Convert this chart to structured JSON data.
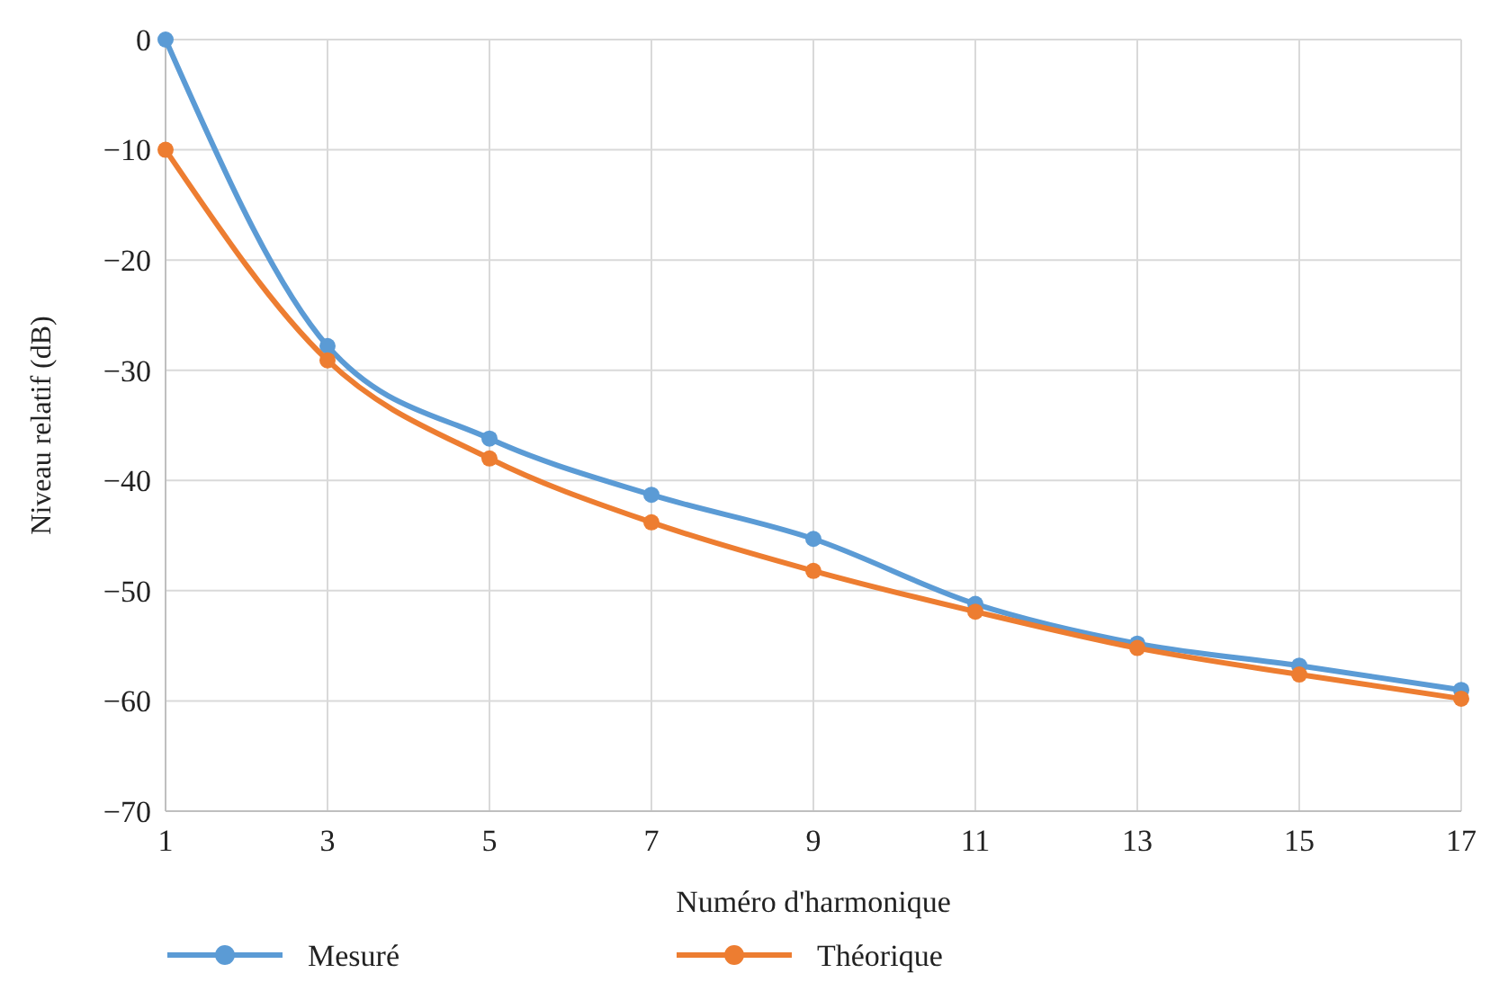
{
  "chart_data": {
    "type": "line",
    "xlabel": "Numéro d'harmonique",
    "ylabel": "Niveau relatif (dB)",
    "x": [
      1,
      3,
      5,
      7,
      9,
      11,
      13,
      15,
      17
    ],
    "series": [
      {
        "name": "Mesuré",
        "color": "#5b9bd5",
        "values": [
          0,
          -27.8,
          -36.2,
          -41.3,
          -45.3,
          -51.2,
          -54.8,
          -56.8,
          -59
        ]
      },
      {
        "name": "Théorique",
        "color": "#ed7d31",
        "values": [
          -10,
          -29.1,
          -38,
          -43.8,
          -48.2,
          -51.9,
          -55.2,
          -57.6,
          -59.8
        ]
      }
    ],
    "xlim": [
      1,
      17
    ],
    "xticks": [
      1,
      3,
      5,
      7,
      9,
      11,
      13,
      15,
      17
    ],
    "ylim": [
      -70,
      0
    ],
    "yticks": [
      {
        "value": -70,
        "label": "−70"
      },
      {
        "value": -60,
        "label": "−60"
      },
      {
        "value": -50,
        "label": "−50"
      },
      {
        "value": -40,
        "label": "−40"
      },
      {
        "value": -30,
        "label": "−30"
      },
      {
        "value": -20,
        "label": "−20"
      },
      {
        "value": -10,
        "label": "−10"
      },
      0
    ],
    "grid": true,
    "legend": "bottom",
    "marker": "circle",
    "line_style": "solid"
  }
}
